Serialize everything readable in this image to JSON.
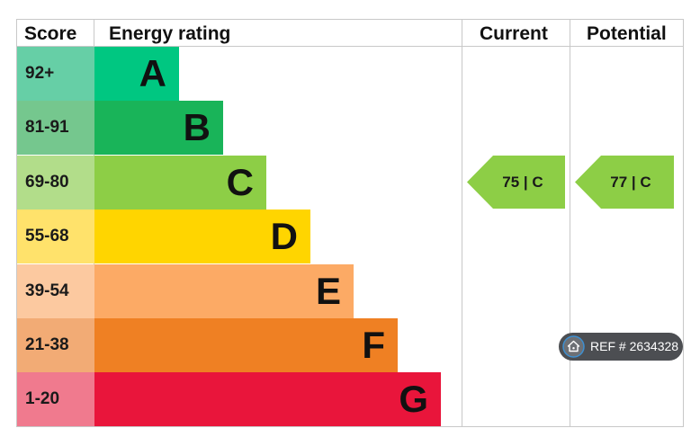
{
  "chart_data": {
    "type": "table",
    "headers": {
      "score": "Score",
      "rating": "Energy rating",
      "current": "Current",
      "potential": "Potential"
    },
    "bands": [
      {
        "score": "92+",
        "letter": "A",
        "color": "#00c781",
        "score_color": "#66cfa6"
      },
      {
        "score": "81-91",
        "letter": "B",
        "color": "#19b459",
        "score_color": "#75c78e"
      },
      {
        "score": "69-80",
        "letter": "C",
        "color": "#8dce46",
        "score_color": "#b2dd8a"
      },
      {
        "score": "55-68",
        "letter": "D",
        "color": "#ffd500",
        "score_color": "#ffe26b"
      },
      {
        "score": "39-54",
        "letter": "E",
        "color": "#fcaa65",
        "score_color": "#fcc9a0"
      },
      {
        "score": "21-38",
        "letter": "F",
        "color": "#ef8023",
        "score_color": "#f2ab75"
      },
      {
        "score": "1-20",
        "letter": "G",
        "color": "#e9153b",
        "score_color": "#f07a8e"
      }
    ],
    "current": {
      "value": 75,
      "band": "C",
      "label": "75 | C",
      "color": "#8dce46"
    },
    "potential": {
      "value": 77,
      "band": "C",
      "label": "77 | C",
      "color": "#8dce46"
    }
  },
  "watermark": {
    "text": "REF # 2634328",
    "icon": "home-icon"
  }
}
